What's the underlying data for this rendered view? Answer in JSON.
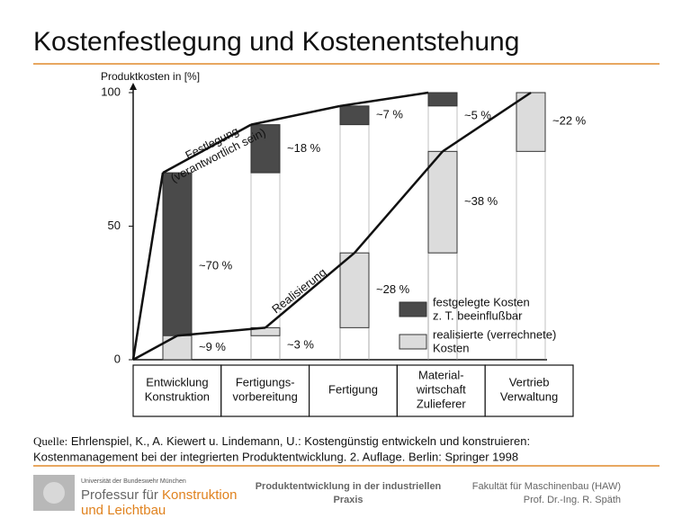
{
  "slide_title": "Kostenfestlegung und Kostenentstehung",
  "chart_data": {
    "type": "waterfall",
    "y_label": "Produktkosten in [%]",
    "categories": [
      [
        "Entwicklung",
        "Konstruktion"
      ],
      [
        "Fertigungs-",
        "vorbereitung"
      ],
      [
        "Fertigung"
      ],
      [
        "Material-",
        "wirtschaft",
        "Zulieferer"
      ],
      [
        "Vertrieb",
        "Verwaltung"
      ]
    ],
    "series": [
      {
        "name": [
          "festgelegte Kosten",
          "z. T. beeinflußbar"
        ],
        "color": "#4a4a4a",
        "values": [
          70,
          18,
          7,
          5,
          null
        ],
        "value_labels": [
          "~70 %",
          "~18 %",
          "~7 %",
          "~5 %",
          null
        ],
        "annotation": [
          "Festlegung",
          "(verantwortlich sein)"
        ]
      },
      {
        "name": [
          "realisierte (verrechnete)",
          "Kosten"
        ],
        "color": "#dcdcdc",
        "values": [
          9,
          3,
          28,
          38,
          22
        ],
        "value_labels": [
          "~9 %",
          "~3 %",
          "~28 %",
          "~38 %",
          "~22 %"
        ],
        "annotation": [
          "Realisierung"
        ]
      }
    ],
    "ylim": [
      0,
      100
    ],
    "yticks": [
      0,
      50,
      100
    ]
  },
  "source": {
    "prefix": "Quelle:",
    "lines": [
      "Ehrlenspiel, K., A. Kiewert u. Lindemann, U.: Kostengünstig entwickeln und konstruieren:",
      "Kostenmanagement bei der integrierten Produktentwicklung. 2. Auflage. Berlin: Springer 1998"
    ]
  },
  "footer": {
    "university": "Universität der Bundeswehr München",
    "chair": [
      "Professur für",
      "Konstruktion",
      "und Leichtbau"
    ],
    "course": [
      "Produktentwicklung in der industriellen",
      "Praxis"
    ],
    "faculty": [
      "Fakultät für Maschinenbau (HAW)",
      "Prof. Dr.-Ing. R. Späth"
    ]
  }
}
